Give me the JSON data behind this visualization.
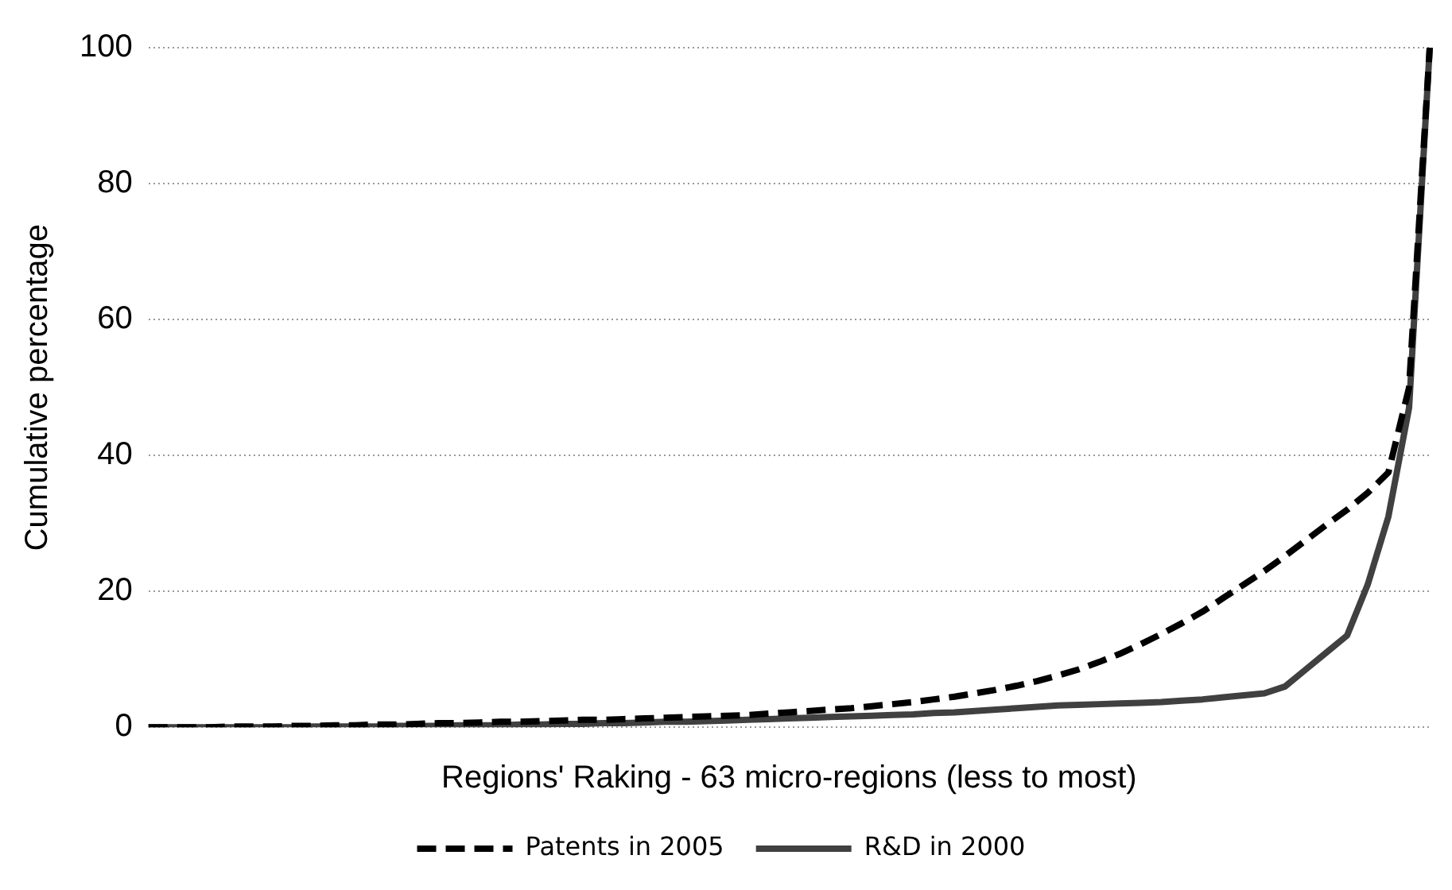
{
  "chart_data": {
    "type": "line",
    "xlabel": "Regions' Raking - 63 micro-regions (less to most)",
    "ylabel": "Cumulative percentage",
    "categories": [
      null,
      null,
      null,
      null,
      null,
      null,
      null,
      null,
      null,
      null,
      null,
      null,
      null,
      null,
      null,
      null,
      null,
      null,
      null,
      null,
      null,
      null,
      null,
      null,
      null,
      null,
      null,
      null,
      null,
      null,
      null,
      null,
      null,
      null,
      null,
      null,
      null,
      null,
      null,
      null,
      null,
      null,
      null,
      null,
      null,
      null,
      null,
      null,
      null,
      null,
      null,
      null,
      null,
      null,
      null,
      null,
      null,
      null,
      null,
      null,
      null,
      null,
      null
    ],
    "ylim": [
      0,
      100
    ],
    "yticks": [
      0,
      20,
      40,
      60,
      80,
      100
    ],
    "grid": "y",
    "legend": "bottom",
    "marker": "none",
    "series": [
      {
        "name": "Patents in 2005",
        "color": "#000000",
        "line_style": "dashed",
        "values": [
          0,
          0,
          0,
          0,
          0.1,
          0.1,
          0.1,
          0.2,
          0.2,
          0.3,
          0.3,
          0.4,
          0.4,
          0.5,
          0.6,
          0.6,
          0.7,
          0.8,
          0.8,
          0.9,
          1.0,
          1.1,
          1.1,
          1.2,
          1.3,
          1.4,
          1.5,
          1.6,
          1.7,
          1.8,
          2.0,
          2.2,
          2.4,
          2.6,
          2.8,
          3.1,
          3.4,
          3.7,
          4.1,
          4.5,
          5.0,
          5.5,
          6.1,
          6.8,
          7.6,
          8.5,
          9.6,
          10.8,
          12.2,
          13.7,
          15.3,
          17.0,
          19.0,
          21.0,
          23.0,
          25.2,
          27.5,
          29.8,
          32.0,
          34.5,
          37.5,
          50,
          100
        ]
      },
      {
        "name": "R&D in 2000",
        "color": "#404040",
        "line_style": "solid",
        "values": [
          0,
          0,
          0,
          0,
          0,
          0,
          0,
          0,
          0.1,
          0.1,
          0.1,
          0.1,
          0.2,
          0.2,
          0.2,
          0.3,
          0.3,
          0.3,
          0.4,
          0.4,
          0.5,
          0.5,
          0.6,
          0.6,
          0.7,
          0.8,
          0.8,
          0.9,
          1.0,
          1.1,
          1.2,
          1.3,
          1.4,
          1.5,
          1.6,
          1.7,
          1.8,
          1.9,
          2.1,
          2.2,
          2.4,
          2.6,
          2.8,
          3.0,
          3.2,
          3.3,
          3.4,
          3.5,
          3.6,
          3.7,
          3.9,
          4.1,
          4.4,
          4.7,
          5.0,
          6.0,
          8.5,
          11.0,
          13.5,
          21,
          31,
          47,
          100
        ]
      }
    ]
  }
}
